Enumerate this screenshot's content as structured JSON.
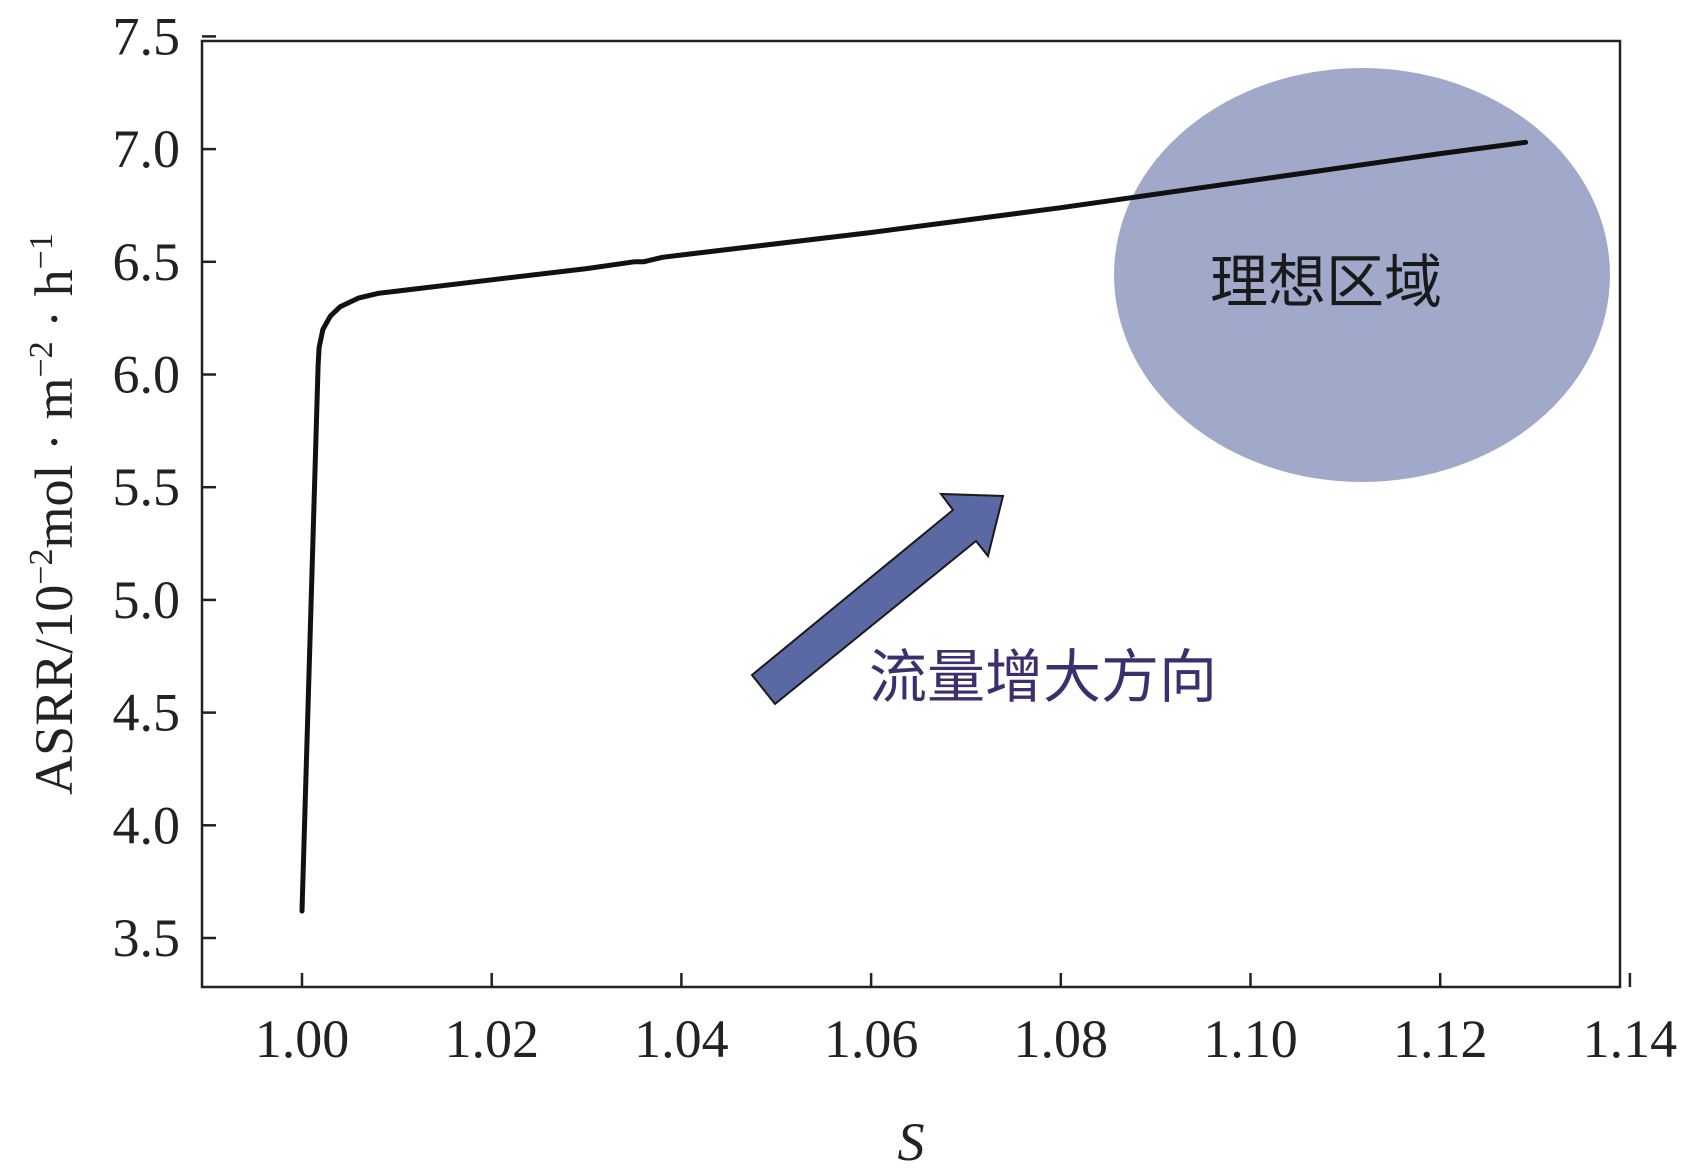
{
  "chart_data": {
    "type": "line",
    "title": "",
    "xlabel": "S",
    "ylabel": {
      "base": "ASRR/10",
      "sup1": "−2",
      "mid1": "mol · m",
      "sup2": "−2",
      "mid2": " · h",
      "sup3": "−1"
    },
    "xlim": [
      0.99,
      1.14
    ],
    "ylim": [
      3.25,
      7.5
    ],
    "xticks": [
      1.0,
      1.02,
      1.04,
      1.06,
      1.08,
      1.1,
      1.12,
      1.14
    ],
    "xtick_labels": [
      "1.00",
      "1.02",
      "1.04",
      "1.06",
      "1.08",
      "1.10",
      "1.12",
      "1.14"
    ],
    "yticks": [
      3.5,
      4.0,
      4.5,
      5.0,
      5.5,
      6.0,
      6.5,
      7.0,
      7.5
    ],
    "ytick_labels": [
      "3.5",
      "4.0",
      "4.5",
      "5.0",
      "5.5",
      "6.0",
      "6.5",
      "7.0",
      "7.5"
    ],
    "grid": false,
    "series": [
      {
        "x": [
          1.0,
          1.0017,
          1.0018,
          1.0022,
          1.003,
          1.004,
          1.006,
          1.008,
          1.01,
          1.02,
          1.03,
          1.035,
          1.036,
          1.038,
          1.04,
          1.06,
          1.08,
          1.1,
          1.12,
          1.129
        ],
        "y": [
          3.62,
          6.04,
          6.12,
          6.2,
          6.26,
          6.3,
          6.34,
          6.36,
          6.37,
          6.42,
          6.47,
          6.5,
          6.5,
          6.52,
          6.53,
          6.63,
          6.74,
          6.86,
          6.98,
          7.03
        ]
      }
    ],
    "annotations": {
      "ideal_region_label": "理想区域",
      "arrow_label": "流量增大方向"
    }
  },
  "colors": {
    "line": "#111111",
    "ellipse": "#a1a9cb",
    "arrow_fill": "#5a68a4",
    "arrow_stroke": "#1a1a1a",
    "arrow_text": "#3c2f6e",
    "region_text": "#1a1a1a"
  }
}
